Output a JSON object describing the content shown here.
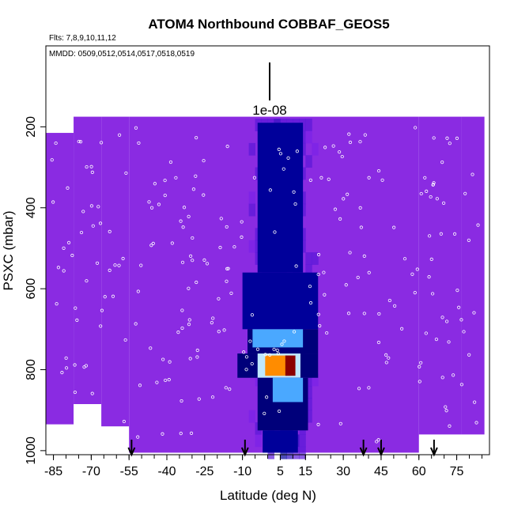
{
  "chart_data": {
    "type": "heatmap",
    "title": "ATOM4 Northbound COBBAF_GEOS5",
    "flights_label": "Flts: 7,8,9,10,11,12",
    "dates_label": "MMDD: 0509,0512,0514,0517,0518,0519",
    "legend_label": "1e-08",
    "xlabel": "Latitude (deg N)",
    "ylabel": "PSXC (mbar)",
    "xlim": [
      -88,
      88
    ],
    "ylim": [
      1010,
      0
    ],
    "x_ticks": [
      -85,
      -70,
      -55,
      -40,
      -25,
      -10,
      5,
      15,
      30,
      45,
      60,
      75
    ],
    "x_tick_labels": [
      "-85",
      "-70",
      "-55",
      "-40",
      "-25",
      "-10",
      "5",
      "15",
      "30",
      "45",
      "60",
      "75"
    ],
    "y_ticks": [
      200,
      400,
      600,
      800,
      1000
    ],
    "y_tick_labels": [
      "200",
      "400",
      "600",
      "800",
      "1000"
    ],
    "colorscale": [
      "#8a2be2",
      "#7b22e8",
      "#5a18d8",
      "#2f0fc0",
      "#00009a",
      "#00007a",
      "#0a3dff",
      "#4aa8ff",
      "#bfe8ff",
      "#ffff40",
      "#ff8c00",
      "#e01010",
      "#8b0000"
    ],
    "background_color": "#8a2be2",
    "columns": [
      {
        "x0": -88,
        "x1": -77,
        "p_top": 215,
        "p_bottom": 935
      },
      {
        "x0": -77,
        "x1": -66,
        "p_top": 175,
        "p_bottom": 885
      },
      {
        "x0": -66,
        "x1": -55,
        "p_top": 175,
        "p_bottom": 940
      },
      {
        "x0": -55,
        "x1": 60,
        "p_top": 175,
        "p_bottom": 1005
      },
      {
        "x0": 60,
        "x1": 77,
        "p_top": 175,
        "p_bottom": 960
      },
      {
        "x0": 77,
        "x1": 86,
        "p_top": 175,
        "p_bottom": 960
      }
    ],
    "features": [
      {
        "x0": -4,
        "x1": 14,
        "p0": 190,
        "p1": 560,
        "level": 0.3
      },
      {
        "x0": -10,
        "x1": 20,
        "p0": 560,
        "p1": 700,
        "level": 0.35
      },
      {
        "x0": -8,
        "x1": 20,
        "p0": 700,
        "p1": 760,
        "level": 0.45
      },
      {
        "x0": -6,
        "x1": 14,
        "p0": 700,
        "p1": 745,
        "level": 0.62
      },
      {
        "x0": -12,
        "x1": 20,
        "p0": 760,
        "p1": 820,
        "level": 0.4
      },
      {
        "x0": -4,
        "x1": 13,
        "p0": 760,
        "p1": 820,
        "level": 0.65
      },
      {
        "x0": -1,
        "x1": 9,
        "p0": 765,
        "p1": 815,
        "level": 0.85
      },
      {
        "x0": 7,
        "x1": 11,
        "p0": 765,
        "p1": 815,
        "level": 1.0
      },
      {
        "x0": -4,
        "x1": 16,
        "p0": 820,
        "p1": 950,
        "level": 0.4
      },
      {
        "x0": 2,
        "x1": 14,
        "p0": 820,
        "p1": 880,
        "level": 0.6
      },
      {
        "x0": -2,
        "x1": 12,
        "p0": 950,
        "p1": 1005,
        "level": 0.32
      }
    ],
    "arrow_latitudes": [
      -54,
      -9,
      38,
      45,
      66
    ]
  }
}
